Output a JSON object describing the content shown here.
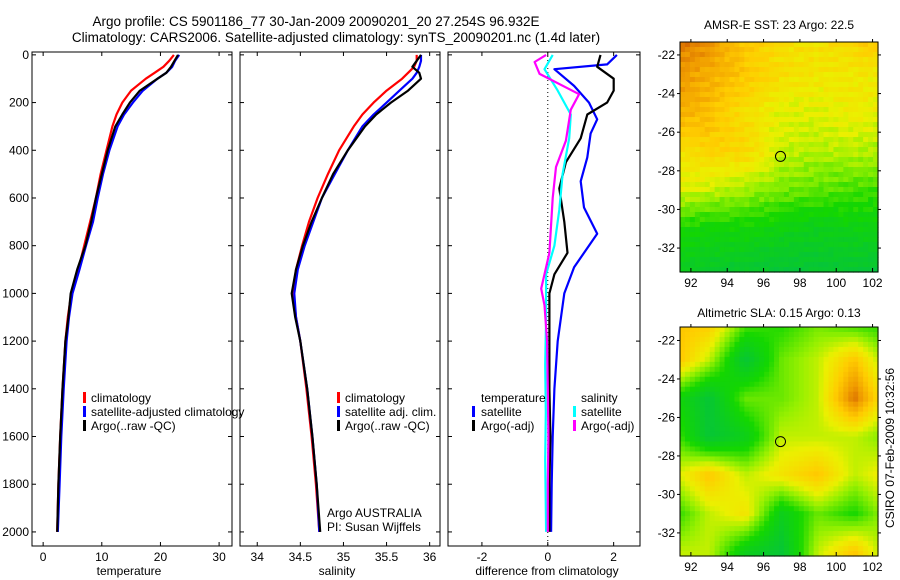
{
  "header": {
    "title_line1": "Argo profile: CS 5901186_77 30-Jan-2009 20090201_20 27.254S 96.932E",
    "title_line2": "Climatology: CARS2006. Satellite-adjusted climatology: synTS_20090201.nc (1.4d later)"
  },
  "colors": {
    "climatology": "#ff0000",
    "satellite": "#0000ff",
    "argo": "#000000",
    "sal_satellite": "#00ffff",
    "sal_argo": "#ff00ff"
  },
  "chart_data": [
    {
      "type": "line",
      "id": "temperature",
      "xlabel": "temperature",
      "ylabel": "",
      "xlim": [
        -1.9,
        32.2
      ],
      "ylim": [
        2059,
        -12
      ],
      "xticks": [
        0,
        10,
        20,
        30
      ],
      "yticks": [
        0,
        200,
        400,
        600,
        800,
        1000,
        1200,
        1400,
        1600,
        1800,
        2000
      ],
      "depth": [
        0,
        25,
        50,
        75,
        100,
        150,
        200,
        250,
        300,
        400,
        500,
        600,
        700,
        800,
        900,
        1000,
        1100,
        1200,
        1400,
        1600,
        1800,
        2000
      ],
      "series": [
        {
          "name": "climatology",
          "color": "#ff0000",
          "values": [
            22.3,
            21.5,
            20.5,
            19,
            17.5,
            15,
            13.5,
            12.5,
            11.8,
            10.8,
            9.8,
            9,
            8,
            7,
            6,
            4.8,
            4.2,
            3.8,
            3.3,
            2.9,
            2.6,
            2.4
          ]
        },
        {
          "name": "satellite-adjusted climatology",
          "color": "#0000ff",
          "values": [
            23.2,
            22.5,
            22,
            21,
            19.5,
            17,
            15.3,
            13.8,
            12.7,
            11.3,
            10.2,
            9.3,
            8.5,
            7.3,
            6.2,
            5,
            4.4,
            4,
            3.5,
            3.1,
            2.8,
            2.5
          ]
        },
        {
          "name": "Argo(..raw -QC)",
          "color": "#000000",
          "values": [
            23,
            22.4,
            21.8,
            21,
            19.5,
            16.5,
            14.8,
            13.5,
            12.3,
            11,
            10,
            9,
            8.2,
            7.2,
            5.8,
            4.7,
            4.3,
            3.8,
            3.3,
            2.9,
            2.6,
            2.4
          ]
        }
      ],
      "legend": [
        "climatology",
        "satellite-adjusted climatology",
        "Argo(..raw -QC)"
      ]
    },
    {
      "type": "line",
      "id": "salinity",
      "xlabel": "salinity",
      "xlim": [
        33.8,
        36.12
      ],
      "ylim": [
        2059,
        -12
      ],
      "xticks": [
        34,
        34.5,
        35,
        35.5,
        36
      ],
      "yticks": [
        0,
        200,
        400,
        600,
        800,
        1000,
        1200,
        1400,
        1600,
        1800,
        2000
      ],
      "depth": [
        0,
        25,
        50,
        75,
        100,
        150,
        200,
        250,
        300,
        400,
        500,
        600,
        700,
        800,
        900,
        1000,
        1100,
        1200,
        1400,
        1600,
        1800,
        2000
      ],
      "series": [
        {
          "name": "climatology",
          "color": "#ff0000",
          "values": [
            35.85,
            35.85,
            35.82,
            35.75,
            35.68,
            35.5,
            35.35,
            35.22,
            35.12,
            34.95,
            34.82,
            34.7,
            34.6,
            34.52,
            34.45,
            34.42,
            34.45,
            34.5,
            34.57,
            34.63,
            34.68,
            34.72
          ]
        },
        {
          "name": "satellite adj. clim.",
          "color": "#0000ff",
          "values": [
            35.9,
            35.9,
            35.88,
            35.85,
            35.8,
            35.65,
            35.5,
            35.35,
            35.22,
            35.05,
            34.9,
            34.75,
            34.65,
            34.55,
            34.47,
            34.43,
            34.45,
            34.5,
            34.58,
            34.64,
            34.69,
            34.72
          ]
        },
        {
          "name": "Argo(..raw -QC)",
          "color": "#000000",
          "values": [
            35.9,
            35.85,
            35.8,
            35.88,
            35.9,
            35.75,
            35.55,
            35.38,
            35.25,
            35.05,
            34.88,
            34.75,
            34.63,
            34.53,
            34.45,
            34.4,
            34.44,
            34.5,
            34.58,
            34.64,
            34.69,
            34.73
          ]
        }
      ],
      "legend": [
        "climatology",
        "satellite adj. clim.",
        "Argo(..raw -QC)"
      ],
      "annotation": [
        "Argo AUSTRALIA",
        "PI: Susan Wijffels"
      ]
    },
    {
      "type": "line",
      "id": "difference",
      "xlabel": "difference from climatology",
      "xlim": [
        -3.03,
        2.8
      ],
      "ylim": [
        2059,
        -12
      ],
      "xticks": [
        -2,
        0,
        2
      ],
      "yticks": [
        0,
        200,
        400,
        600,
        800,
        1000,
        1200,
        1400,
        1600,
        1800,
        2000
      ],
      "series": [
        {
          "name": "temperature satellite",
          "color": "#0000ff",
          "depth": [
            0,
            40,
            60,
            130,
            200,
            270,
            330,
            430,
            530,
            640,
            750,
            890,
            1000,
            1200,
            1400,
            1600,
            1800,
            2000
          ],
          "values": [
            2.1,
            1.8,
            0.2,
            0.8,
            1.25,
            1.5,
            1.3,
            1.2,
            1.0,
            1.1,
            1.5,
            0.8,
            0.5,
            0.3,
            0.2,
            0.15,
            0.12,
            0.1
          ]
        },
        {
          "name": "temperature Argo(-adj)",
          "color": "#000000",
          "depth": [
            0,
            50,
            100,
            150,
            200,
            250,
            350,
            450,
            560,
            700,
            830,
            920,
            1000,
            1200,
            1400,
            1600,
            1800,
            2000
          ],
          "values": [
            1.6,
            1.5,
            2.0,
            2.0,
            1.8,
            1.2,
            1.0,
            0.55,
            0.35,
            0.5,
            0.6,
            0.2,
            0.05,
            0.05,
            0.05,
            0.08,
            0.05,
            0.05
          ]
        },
        {
          "name": "salinity satellite",
          "color": "#00ffff",
          "depth": [
            0,
            60,
            150,
            250,
            350,
            500,
            650,
            800,
            920,
            1100,
            1300,
            1500,
            1700,
            2000
          ],
          "values": [
            0.15,
            -0.1,
            0.3,
            0.7,
            0.65,
            0.45,
            0.35,
            0.2,
            -0.05,
            -0.05,
            -0.08,
            -0.06,
            -0.08,
            -0.05
          ]
        },
        {
          "name": "salinity Argo(-adj)",
          "color": "#ff00ff",
          "depth": [
            0,
            30,
            80,
            165,
            230,
            360,
            470,
            600,
            830,
            980,
            1050,
            1200,
            1400,
            1600,
            1800,
            2000
          ],
          "values": [
            -0.05,
            -0.4,
            -0.25,
            0.95,
            0.7,
            0.55,
            0.25,
            0.15,
            0.05,
            -0.2,
            -0.1,
            -0.02,
            0.0,
            0.02,
            0.0,
            0.0
          ]
        }
      ],
      "legend_headers": [
        "temperature",
        "salinity"
      ],
      "legend": [
        "satellite",
        "Argo(-adj)",
        "satellite",
        "Argo(-adj)"
      ]
    },
    {
      "type": "heatmap",
      "id": "sst_map",
      "title": "AMSR-E SST: 23 Argo: 22.5",
      "xlim": [
        91.4,
        102.3
      ],
      "ylim": [
        -33.24,
        -21.33
      ],
      "xticks": [
        92,
        94,
        96,
        98,
        100,
        102
      ],
      "yticks": [
        -22,
        -24,
        -26,
        -28,
        -30,
        -32
      ],
      "grid_lon": [
        91,
        93,
        95,
        97,
        99,
        101,
        103
      ],
      "grid_lat": [
        -21,
        -23,
        -25,
        -27,
        -29,
        -31,
        -33
      ],
      "values": [
        [
          25.5,
          25,
          24,
          23.5,
          23.5,
          23.8,
          24.5
        ],
        [
          25,
          24.5,
          24,
          23.5,
          23.3,
          23.3,
          23.2
        ],
        [
          24.5,
          24.2,
          23.5,
          23,
          23,
          23.2,
          23
        ],
        [
          23.3,
          23.8,
          23.7,
          22.8,
          22.6,
          22.7,
          22.5
        ],
        [
          23,
          22.8,
          22.5,
          22.2,
          22,
          21.8,
          21.8
        ],
        [
          21.5,
          21.2,
          21.3,
          21,
          20.8,
          21,
          21
        ],
        [
          20.8,
          20.5,
          20.3,
          20.2,
          20.2,
          20.3,
          20
        ]
      ],
      "crange": [
        19.5,
        26
      ],
      "marker": {
        "lon": 96.932,
        "lat": -27.254
      }
    },
    {
      "type": "heatmap",
      "id": "sla_map",
      "title": "Altimetric SLA: 0.15 Argo: 0.13",
      "xlim": [
        91.4,
        102.3
      ],
      "ylim": [
        -33.2,
        -21.3
      ],
      "xticks": [
        92,
        94,
        96,
        98,
        100,
        102
      ],
      "yticks": [
        -22,
        -24,
        -26,
        -28,
        -30,
        -32
      ],
      "grid_lon": [
        91,
        93,
        95,
        97,
        99,
        101,
        103
      ],
      "grid_lat": [
        -21,
        -23,
        -25,
        -27,
        -29,
        -31,
        -33
      ],
      "values": [
        [
          0.2,
          0.2,
          0.05,
          0.0,
          0.05,
          0.0,
          0.0
        ],
        [
          0.22,
          0.1,
          -0.1,
          0.05,
          0.1,
          0.2,
          0.05
        ],
        [
          0.0,
          -0.1,
          0.05,
          0.05,
          0.1,
          0.3,
          0.1
        ],
        [
          0.05,
          -0.1,
          -0.05,
          0.1,
          0.1,
          0.1,
          0.05
        ],
        [
          0.1,
          0.2,
          0.1,
          0.15,
          0.2,
          0.1,
          0.15
        ],
        [
          0.0,
          0.1,
          0.15,
          -0.05,
          0.05,
          0.0,
          0.1
        ],
        [
          0.1,
          0.1,
          -0.05,
          -0.1,
          0.1,
          0.2,
          0.05
        ]
      ],
      "crange": [
        -0.15,
        0.35
      ],
      "marker": {
        "lon": 96.932,
        "lat": -27.254
      }
    }
  ],
  "footer": {
    "credit": "CSIRO 07-Feb-2009 10:32:56"
  }
}
